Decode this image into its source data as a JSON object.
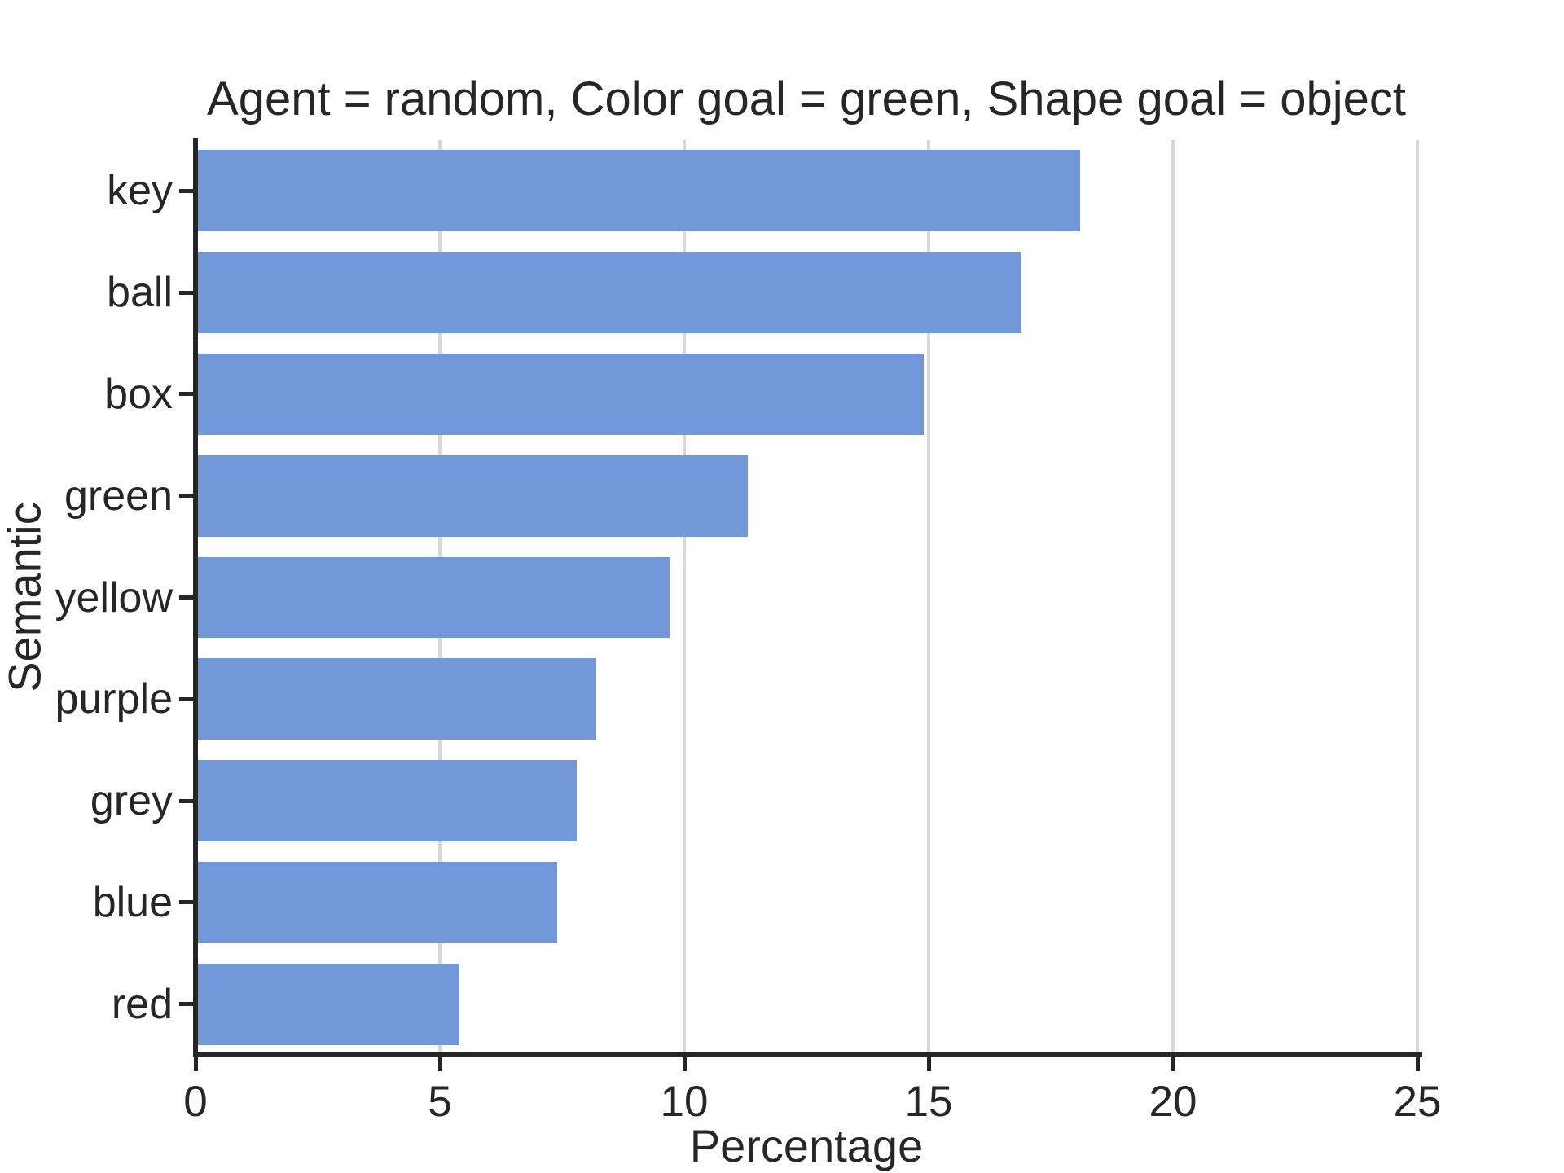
{
  "chart_data": {
    "type": "bar",
    "orientation": "horizontal",
    "title": "Agent = random, Color goal = green, Shape goal = object",
    "xlabel": "Percentage",
    "ylabel": "Semantic",
    "categories": [
      "key",
      "ball",
      "box",
      "green",
      "yellow",
      "purple",
      "grey",
      "blue",
      "red"
    ],
    "values": [
      18.1,
      16.9,
      14.9,
      11.3,
      9.7,
      8.2,
      7.8,
      7.4,
      5.4
    ],
    "xlim": [
      0,
      25
    ],
    "xticks": [
      0,
      5,
      10,
      15,
      20,
      25
    ],
    "grid": "vertical gridlines at x ticks, drawn behind bars",
    "legend_position": "none",
    "bar_width_fraction": 0.8,
    "colors": {
      "bar": "#7398d9",
      "gridline": "#d9d9d9",
      "spine": "#262626",
      "text": "#262626",
      "background": "#ffffff"
    }
  }
}
